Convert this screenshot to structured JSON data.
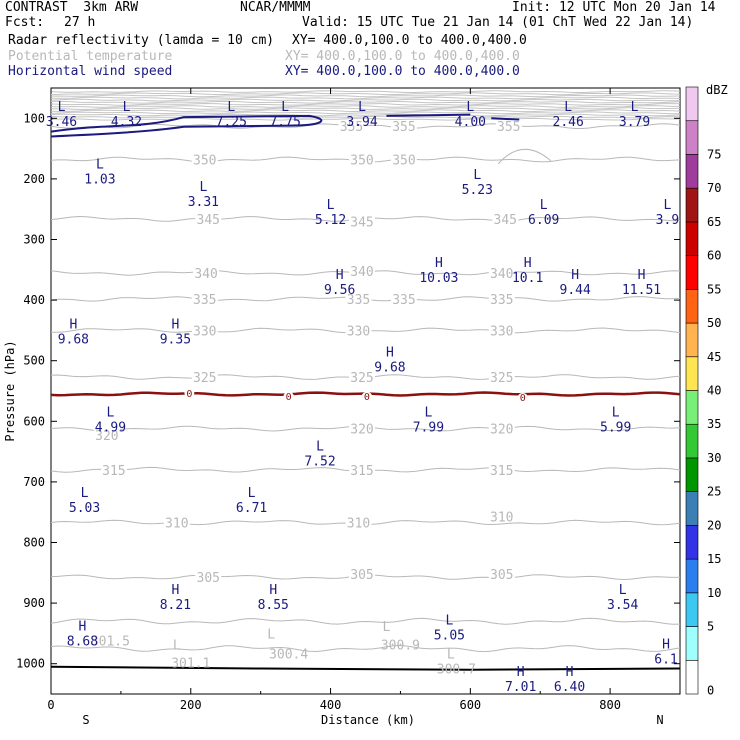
{
  "header": {
    "title": "CONTRAST  3km ARW",
    "source": "NCAR/MMMM",
    "init": "Init: 12 UTC Mon 20 Jan 14",
    "fcst_label": "Fcst:",
    "fcst_value": "27 h",
    "valid": "Valid: 15 UTC Tue 21 Jan 14 (01 ChT Wed 22 Jan 14)",
    "layers": [
      {
        "name": "Radar reflectivity (lamda = 10 cm)",
        "xy": "XY= 400.0,100.0 to 400.0,400.0",
        "color": "#000000"
      },
      {
        "name": "Potential temperature",
        "xy": "XY= 400.0,100.0 to 400.0,400.0",
        "color": "#b8b8b8"
      },
      {
        "name": "Horizontal wind speed",
        "xy": "XY= 400.0,100.0 to 400.0,400.0",
        "color": "#1a1a80"
      }
    ]
  },
  "chart_data": {
    "type": "contour",
    "xlabel": "Distance (km)",
    "ylabel": "Pressure (hPa)",
    "xlim": [
      0,
      900
    ],
    "ylim": [
      1050,
      50
    ],
    "xticks": [
      0,
      200,
      400,
      600,
      800
    ],
    "yticks": [
      100,
      200,
      300,
      400,
      500,
      600,
      700,
      800,
      900,
      1000
    ],
    "x_endpoints": {
      "left": "S",
      "right": "N"
    },
    "theta_contours": [
      {
        "level": "355",
        "p": 113,
        "labels": [
          {
            "x": 430,
            "p": 113,
            "t": "355"
          },
          {
            "x": 505,
            "p": 113,
            "t": "355"
          },
          {
            "x": 655,
            "p": 113,
            "t": "355"
          }
        ]
      },
      {
        "level": "350",
        "p": 168,
        "labels": [
          {
            "x": 220,
            "p": 168,
            "t": "350"
          },
          {
            "x": 445,
            "p": 168,
            "t": "350"
          },
          {
            "x": 505,
            "p": 168,
            "t": "350"
          }
        ]
      },
      {
        "level": "345",
        "p": 266,
        "labels": [
          {
            "x": 225,
            "p": 266,
            "t": "345"
          },
          {
            "x": 445,
            "p": 270,
            "t": "345"
          },
          {
            "x": 650,
            "p": 266,
            "t": "345"
          }
        ]
      },
      {
        "level": "340",
        "p": 355,
        "labels": [
          {
            "x": 222,
            "p": 355,
            "t": "340"
          },
          {
            "x": 445,
            "p": 352,
            "t": "340"
          },
          {
            "x": 645,
            "p": 355,
            "t": "340"
          }
        ]
      },
      {
        "level": "335",
        "p": 398,
        "labels": [
          {
            "x": 220,
            "p": 398,
            "t": "335"
          },
          {
            "x": 440,
            "p": 398,
            "t": "335"
          },
          {
            "x": 505,
            "p": 398,
            "t": "335"
          },
          {
            "x": 645,
            "p": 398,
            "t": "335"
          }
        ]
      },
      {
        "level": "330",
        "p": 450,
        "labels": [
          {
            "x": 220,
            "p": 450,
            "t": "330"
          },
          {
            "x": 440,
            "p": 450,
            "t": "330"
          },
          {
            "x": 645,
            "p": 450,
            "t": "330"
          }
        ]
      },
      {
        "level": "325",
        "p": 527,
        "labels": [
          {
            "x": 220,
            "p": 527,
            "t": "325"
          },
          {
            "x": 445,
            "p": 527,
            "t": "325"
          },
          {
            "x": 645,
            "p": 527,
            "t": "325"
          }
        ]
      },
      {
        "level": "320",
        "p": 612,
        "labels": [
          {
            "x": 80,
            "p": 623,
            "t": "320"
          },
          {
            "x": 445,
            "p": 612,
            "t": "320"
          },
          {
            "x": 645,
            "p": 612,
            "t": "320"
          }
        ]
      },
      {
        "level": "315",
        "p": 680,
        "labels": [
          {
            "x": 90,
            "p": 680,
            "t": "315"
          },
          {
            "x": 445,
            "p": 680,
            "t": "315"
          },
          {
            "x": 645,
            "p": 680,
            "t": "315"
          }
        ]
      },
      {
        "level": "310",
        "p": 767,
        "labels": [
          {
            "x": 180,
            "p": 767,
            "t": "310"
          },
          {
            "x": 440,
            "p": 767,
            "t": "310"
          },
          {
            "x": 645,
            "p": 757,
            "t": "310"
          }
        ]
      },
      {
        "level": "305",
        "p": 857,
        "labels": [
          {
            "x": 225,
            "p": 857,
            "t": "305"
          },
          {
            "x": 445,
            "p": 852,
            "t": "305"
          },
          {
            "x": 645,
            "p": 852,
            "t": "305"
          }
        ]
      }
    ],
    "surface_labels": [
      {
        "x": 85,
        "p": 962,
        "t": "301.5"
      },
      {
        "x": 200,
        "p": 998,
        "t": "301.1"
      },
      {
        "x": 340,
        "p": 983,
        "t": "300.4"
      },
      {
        "x": 500,
        "p": 968,
        "t": "300.9"
      },
      {
        "x": 580,
        "p": 1008,
        "t": "300.7"
      }
    ],
    "surface_markers": [
      {
        "x": 180,
        "p": 968,
        "t": "L"
      },
      {
        "x": 315,
        "p": 950,
        "t": "L"
      },
      {
        "x": 480,
        "p": 938,
        "t": "L"
      },
      {
        "x": 572,
        "p": 983,
        "t": "L"
      }
    ],
    "reflectivity_contour": {
      "level": "0",
      "p": 555,
      "labels": [
        {
          "x": 198,
          "p": 553
        },
        {
          "x": 340,
          "p": 558
        },
        {
          "x": 452,
          "p": 558
        },
        {
          "x": 675,
          "p": 560
        }
      ]
    },
    "wind_extrema": [
      {
        "type": "L",
        "value": "3.46",
        "x": 15,
        "p": 88
      },
      {
        "type": "L",
        "value": "4.32",
        "x": 108,
        "p": 88
      },
      {
        "type": "L",
        "value": "7.25",
        "x": 258,
        "p": 88
      },
      {
        "type": "L",
        "value": "7.75",
        "x": 335,
        "p": 88
      },
      {
        "type": "L",
        "value": "3.94",
        "x": 445,
        "p": 88
      },
      {
        "type": "L",
        "value": "4.00",
        "x": 600,
        "p": 88
      },
      {
        "type": "L",
        "value": "2.46",
        "x": 740,
        "p": 88
      },
      {
        "type": "L",
        "value": "3.79",
        "x": 835,
        "p": 88
      },
      {
        "type": "L",
        "value": "1.03",
        "x": 70,
        "p": 183
      },
      {
        "type": "L",
        "value": "3.31",
        "x": 218,
        "p": 220
      },
      {
        "type": "L",
        "value": "5.23",
        "x": 610,
        "p": 200
      },
      {
        "type": "L",
        "value": "5.12",
        "x": 400,
        "p": 250
      },
      {
        "type": "L",
        "value": "6.09",
        "x": 705,
        "p": 250
      },
      {
        "type": "L",
        "value": "3.9",
        "x": 882,
        "p": 250
      },
      {
        "type": "H",
        "value": "10.03",
        "x": 555,
        "p": 345
      },
      {
        "type": "H",
        "value": "10.1",
        "x": 682,
        "p": 345
      },
      {
        "type": "H",
        "value": "9.56",
        "x": 413,
        "p": 365
      },
      {
        "type": "H",
        "value": "9.44",
        "x": 750,
        "p": 365
      },
      {
        "type": "H",
        "value": "11.51",
        "x": 845,
        "p": 365
      },
      {
        "type": "H",
        "value": "9.68",
        "x": 32,
        "p": 447
      },
      {
        "type": "H",
        "value": "9.35",
        "x": 178,
        "p": 447
      },
      {
        "type": "H",
        "value": "9.68",
        "x": 485,
        "p": 493
      },
      {
        "type": "L",
        "value": "4.99",
        "x": 85,
        "p": 592
      },
      {
        "type": "L",
        "value": "7.99",
        "x": 540,
        "p": 592
      },
      {
        "type": "L",
        "value": "5.99",
        "x": 808,
        "p": 592
      },
      {
        "type": "L",
        "value": "7.52",
        "x": 385,
        "p": 648
      },
      {
        "type": "L",
        "value": "5.03",
        "x": 48,
        "p": 725
      },
      {
        "type": "L",
        "value": "6.71",
        "x": 287,
        "p": 725
      },
      {
        "type": "H",
        "value": "8.21",
        "x": 178,
        "p": 885
      },
      {
        "type": "H",
        "value": "8.55",
        "x": 318,
        "p": 885
      },
      {
        "type": "L",
        "value": "3.54",
        "x": 818,
        "p": 885
      },
      {
        "type": "L",
        "value": "5.05",
        "x": 570,
        "p": 935
      },
      {
        "type": "H",
        "value": "8.68",
        "x": 45,
        "p": 945
      },
      {
        "type": "H",
        "value": "6.1",
        "x": 880,
        "p": 975
      },
      {
        "type": "H",
        "value": "7.01",
        "x": 672,
        "p": 1020
      },
      {
        "type": "H",
        "value": "6.40",
        "x": 742,
        "p": 1020
      }
    ],
    "colorbar": {
      "unit": "dBZ",
      "levels": [
        "0",
        "5",
        "10",
        "15",
        "20",
        "25",
        "30",
        "35",
        "40",
        "45",
        "50",
        "55",
        "60",
        "65",
        "70",
        "75"
      ],
      "colors": [
        "#ffffff",
        "#9fffff",
        "#3cc8f0",
        "#2a7ff0",
        "#3232e6",
        "#3c7fb4",
        "#009600",
        "#34c834",
        "#78f078",
        "#ffe650",
        "#ffb450",
        "#ff6414",
        "#ff0000",
        "#cd0000",
        "#a01414",
        "#a03c9c",
        "#cd82c8",
        "#f0c8f0"
      ]
    }
  }
}
